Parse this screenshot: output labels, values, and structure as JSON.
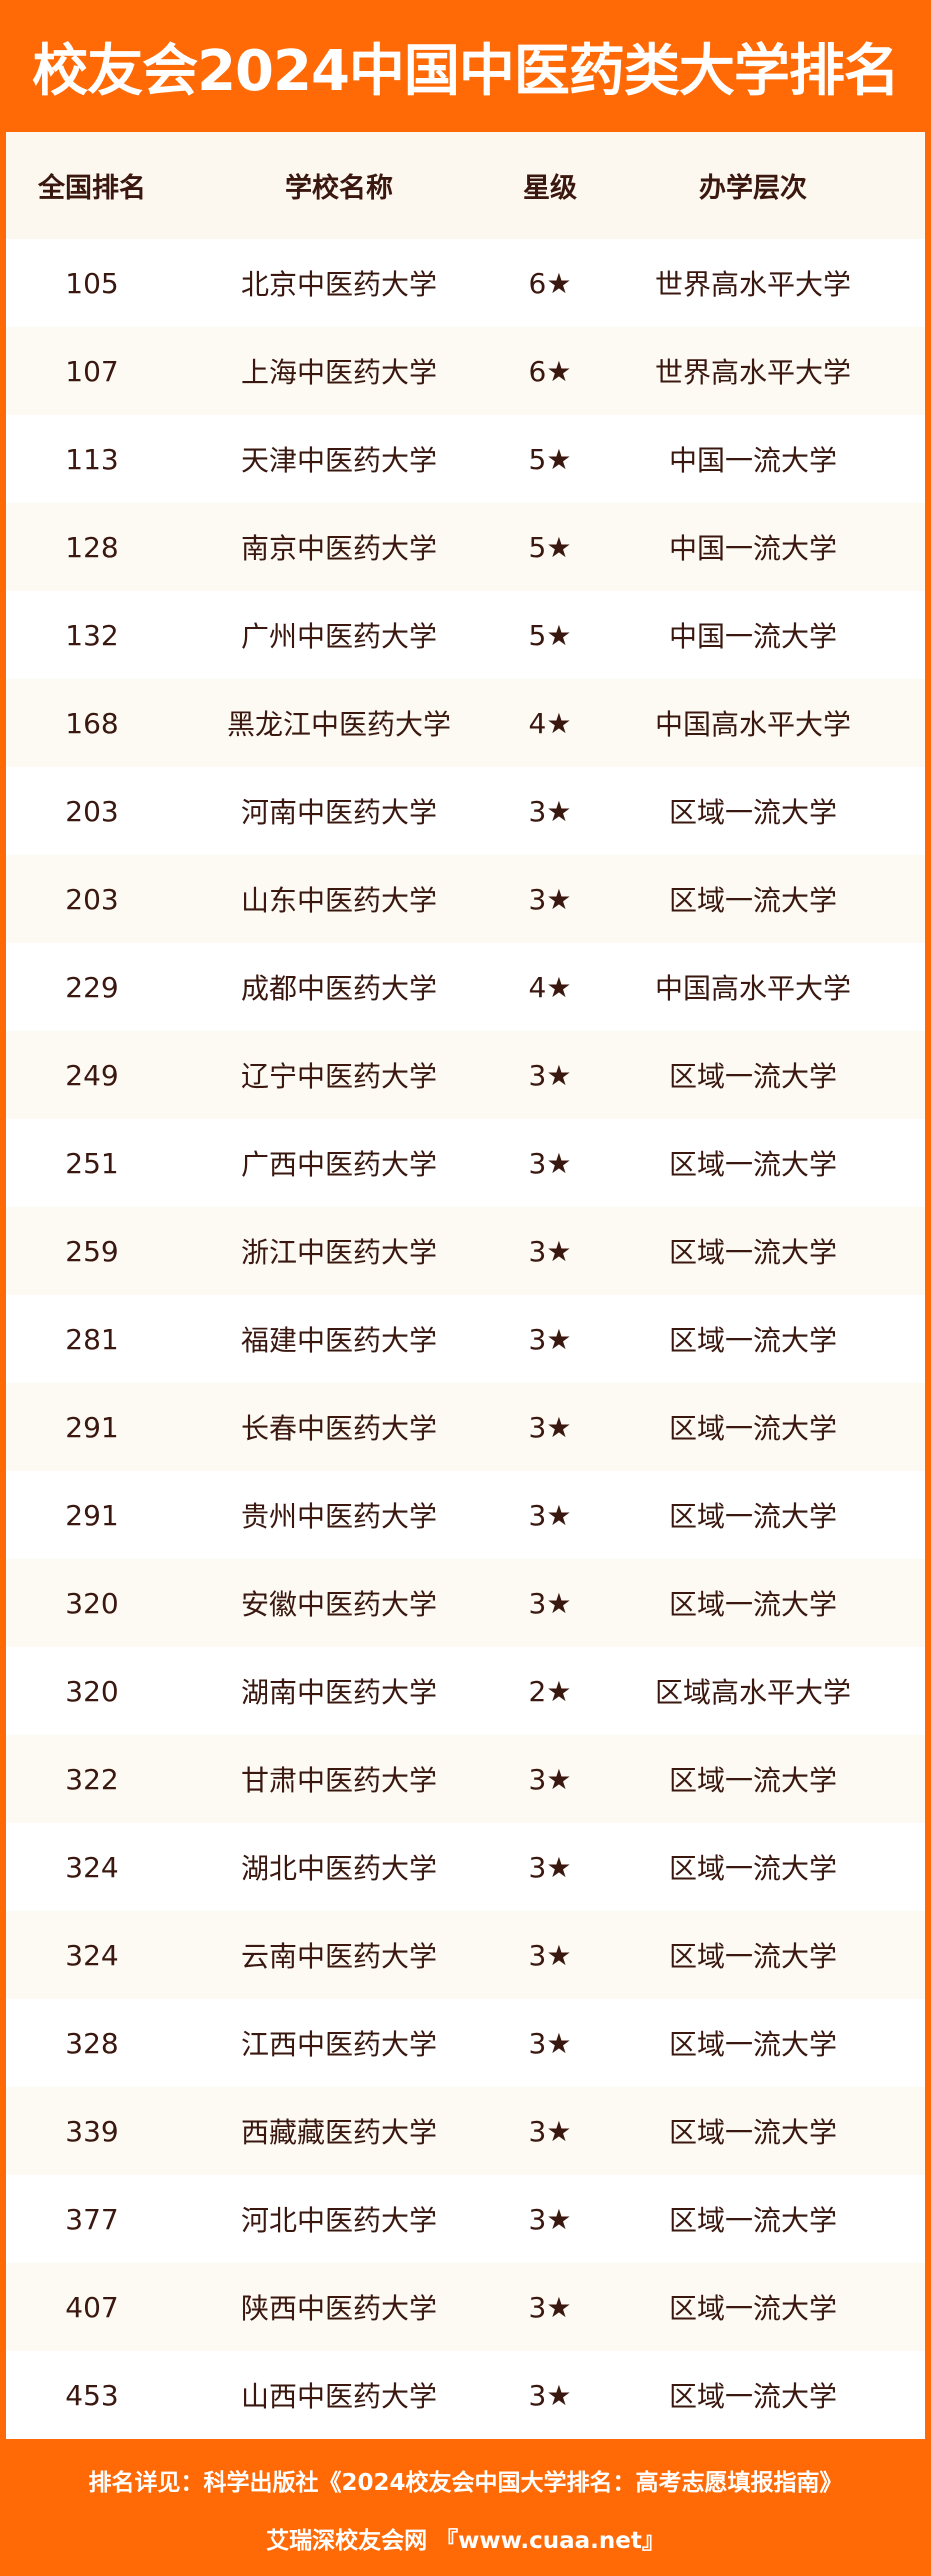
{
  "title": "校友会2024中国中医药类大学排名",
  "colors": {
    "brand_orange": "#ff6a06",
    "text": "#3a1810",
    "row_alt": "#fdfaf3"
  },
  "table": {
    "headers": [
      "全国排名",
      "学校名称",
      "星级",
      "办学层次"
    ],
    "rows": [
      [
        "105",
        "北京中医药大学",
        "6★",
        "世界高水平大学"
      ],
      [
        "107",
        "上海中医药大学",
        "6★",
        "世界高水平大学"
      ],
      [
        "113",
        "天津中医药大学",
        "5★",
        "中国一流大学"
      ],
      [
        "128",
        "南京中医药大学",
        "5★",
        "中国一流大学"
      ],
      [
        "132",
        "广州中医药大学",
        "5★",
        "中国一流大学"
      ],
      [
        "168",
        "黑龙江中医药大学",
        "4★",
        "中国高水平大学"
      ],
      [
        "203",
        "河南中医药大学",
        "3★",
        "区域一流大学"
      ],
      [
        "203",
        "山东中医药大学",
        "3★",
        "区域一流大学"
      ],
      [
        "229",
        "成都中医药大学",
        "4★",
        "中国高水平大学"
      ],
      [
        "249",
        "辽宁中医药大学",
        "3★",
        "区域一流大学"
      ],
      [
        "251",
        "广西中医药大学",
        "3★",
        "区域一流大学"
      ],
      [
        "259",
        "浙江中医药大学",
        "3★",
        "区域一流大学"
      ],
      [
        "281",
        "福建中医药大学",
        "3★",
        "区域一流大学"
      ],
      [
        "291",
        "长春中医药大学",
        "3★",
        "区域一流大学"
      ],
      [
        "291",
        "贵州中医药大学",
        "3★",
        "区域一流大学"
      ],
      [
        "320",
        "安徽中医药大学",
        "3★",
        "区域一流大学"
      ],
      [
        "320",
        "湖南中医药大学",
        "2★",
        "区域高水平大学"
      ],
      [
        "322",
        "甘肃中医药大学",
        "3★",
        "区域一流大学"
      ],
      [
        "324",
        "湖北中医药大学",
        "3★",
        "区域一流大学"
      ],
      [
        "324",
        "云南中医药大学",
        "3★",
        "区域一流大学"
      ],
      [
        "328",
        "江西中医药大学",
        "3★",
        "区域一流大学"
      ],
      [
        "339",
        "西藏藏医药大学",
        "3★",
        "区域一流大学"
      ],
      [
        "377",
        "河北中医药大学",
        "3★",
        "区域一流大学"
      ],
      [
        "407",
        "陕西中医药大学",
        "3★",
        "区域一流大学"
      ],
      [
        "453",
        "山西中医药大学",
        "3★",
        "区域一流大学"
      ]
    ]
  },
  "footer": {
    "source": "排名详见：科学出版社《2024校友会中国大学排名：高考志愿填报指南》",
    "site": "艾瑞深校友会网 『www.cuaa.net』"
  }
}
